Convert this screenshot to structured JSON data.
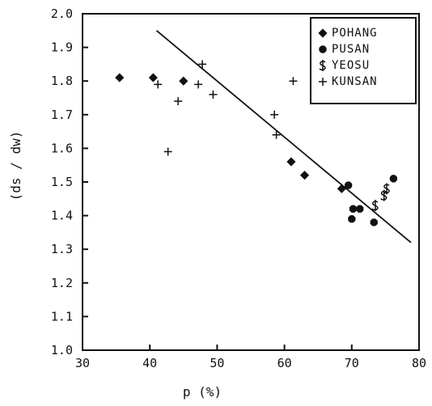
{
  "chart_data": {
    "type": "scatter",
    "title": "",
    "xlabel": "p (%)",
    "ylabel": "(ds / dw)",
    "x_ticks": [
      "30",
      "40",
      "50",
      "60",
      "70",
      "80"
    ],
    "y_ticks": [
      "1.0",
      "1.1",
      "1.2",
      "1.3",
      "1.4",
      "1.5",
      "1.6",
      "1.7",
      "1.8",
      "1.9",
      "2.0"
    ],
    "xlim": [
      30,
      80
    ],
    "ylim": [
      1.0,
      2.0
    ],
    "grid": false,
    "legend_position": "top-right",
    "series": [
      {
        "name": "POHANG",
        "marker": "diamond",
        "points": [
          {
            "x": 35.5,
            "y": 1.81
          },
          {
            "x": 40.5,
            "y": 1.81
          },
          {
            "x": 45,
            "y": 1.8
          },
          {
            "x": 61,
            "y": 1.56
          },
          {
            "x": 63,
            "y": 1.52
          },
          {
            "x": 68.5,
            "y": 1.48
          }
        ]
      },
      {
        "name": "PUSAN",
        "marker": "octagon",
        "points": [
          {
            "x": 69.5,
            "y": 1.49
          },
          {
            "x": 70.2,
            "y": 1.42
          },
          {
            "x": 71.2,
            "y": 1.42
          },
          {
            "x": 70,
            "y": 1.39
          },
          {
            "x": 73.3,
            "y": 1.38
          },
          {
            "x": 76.2,
            "y": 1.51
          }
        ]
      },
      {
        "name": "YEOSU",
        "marker": "dollar",
        "points": [
          {
            "x": 73.5,
            "y": 1.43
          },
          {
            "x": 74.8,
            "y": 1.46
          },
          {
            "x": 75.2,
            "y": 1.48
          }
        ]
      },
      {
        "name": "KUNSAN",
        "marker": "plus",
        "points": [
          {
            "x": 41.2,
            "y": 1.79
          },
          {
            "x": 42.7,
            "y": 1.59
          },
          {
            "x": 44.2,
            "y": 1.74
          },
          {
            "x": 47.2,
            "y": 1.79
          },
          {
            "x": 47.8,
            "y": 1.85
          },
          {
            "x": 49.4,
            "y": 1.76
          },
          {
            "x": 58.5,
            "y": 1.7
          },
          {
            "x": 58.8,
            "y": 1.64
          },
          {
            "x": 61.3,
            "y": 1.8
          }
        ]
      }
    ],
    "trend_line": {
      "x": [
        41,
        78.8
      ],
      "y": [
        1.95,
        1.32
      ]
    }
  }
}
